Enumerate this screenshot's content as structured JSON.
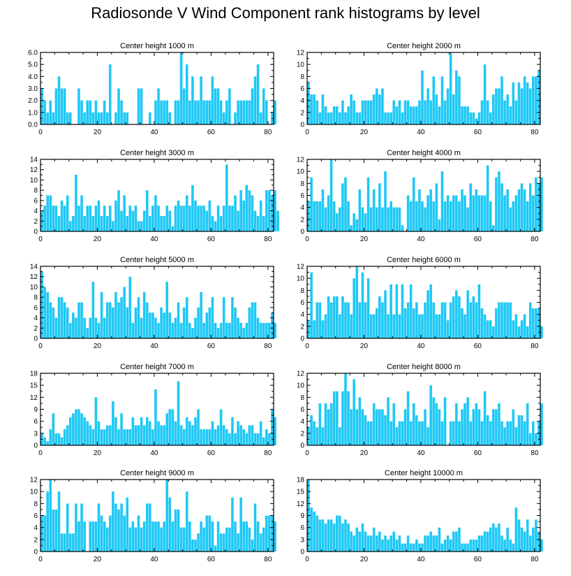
{
  "figure": {
    "title": "Radiosonde V Wind Component rank histograms by level",
    "bar_color": "#1EC8F5",
    "axis_color": "#000000"
  },
  "chart_data": [
    {
      "type": "bar",
      "title": "Center height 1000 m",
      "xlim": [
        0,
        82
      ],
      "ylim": [
        0,
        6
      ],
      "xticks": [
        0,
        20,
        40,
        60,
        80
      ],
      "yticks": [
        0.0,
        1.0,
        2.0,
        3.0,
        4.0,
        5.0,
        6.0
      ],
      "ytick_labels": [
        "0.0",
        "1.0",
        "2.0",
        "3.0",
        "4.0",
        "5.0",
        "6.0"
      ],
      "values": [
        3,
        2,
        1,
        2,
        1,
        3,
        4,
        3,
        3,
        1,
        1,
        0,
        0,
        3,
        2,
        1,
        2,
        2,
        1,
        2,
        1,
        1,
        2,
        1,
        5,
        0,
        1,
        3,
        2,
        1,
        1,
        0,
        0,
        0,
        3,
        3,
        0,
        0,
        1,
        0,
        2,
        3,
        2,
        2,
        2,
        1,
        0,
        2,
        2,
        6,
        3,
        5,
        2,
        4,
        2,
        2,
        4,
        2,
        2,
        2,
        4,
        3,
        3,
        2,
        1,
        2,
        3,
        0,
        1,
        2,
        2,
        2,
        2,
        2,
        3,
        4,
        5,
        1,
        3,
        2,
        0,
        1,
        2
      ]
    },
    {
      "type": "bar",
      "title": "Center height 2000 m",
      "xlim": [
        0,
        82
      ],
      "ylim": [
        0,
        12
      ],
      "xticks": [
        0,
        20,
        40,
        60,
        80
      ],
      "yticks": [
        0,
        2,
        4,
        6,
        8,
        10,
        12
      ],
      "ytick_labels": [
        "0",
        "2",
        "4",
        "6",
        "8",
        "10",
        "12"
      ],
      "values": [
        7,
        5,
        5,
        4,
        2,
        5,
        3,
        2,
        2,
        3,
        3,
        2,
        4,
        2,
        3,
        5,
        4,
        2,
        2,
        4,
        4,
        4,
        4,
        5,
        6,
        5,
        6,
        2,
        2,
        2,
        4,
        3,
        4,
        2,
        4,
        4,
        3,
        3,
        3,
        4,
        9,
        4,
        6,
        4,
        8,
        5,
        3,
        8,
        4,
        6,
        12,
        5,
        9,
        8,
        3,
        3,
        3,
        2,
        2,
        1,
        2,
        4,
        10,
        4,
        2,
        5,
        6,
        6,
        8,
        4,
        5,
        3,
        7,
        4,
        7,
        6,
        8,
        7,
        6,
        8,
        8,
        9
      ]
    },
    {
      "type": "bar",
      "title": "Center height 3000 m",
      "xlim": [
        0,
        82
      ],
      "ylim": [
        0,
        14
      ],
      "xticks": [
        0,
        20,
        40,
        60,
        80
      ],
      "yticks": [
        0,
        2,
        4,
        6,
        8,
        10,
        12,
        14
      ],
      "ytick_labels": [
        "0",
        "2",
        "4",
        "6",
        "8",
        "10",
        "12",
        "14"
      ],
      "values": [
        4,
        5,
        7,
        7,
        5,
        5,
        3,
        6,
        5,
        7,
        2,
        3,
        11,
        5,
        7,
        3,
        5,
        5,
        3,
        5,
        6,
        3,
        5,
        3,
        5,
        2,
        6,
        8,
        4,
        7,
        3,
        5,
        4,
        5,
        2,
        2,
        4,
        8,
        3,
        5,
        7,
        5,
        3,
        3,
        5,
        4,
        1,
        5,
        6,
        5,
        5,
        7,
        5,
        9,
        6,
        5,
        5,
        5,
        4,
        6,
        3,
        2,
        5,
        3,
        5,
        13,
        5,
        5,
        7,
        4,
        8,
        6,
        9,
        8,
        7,
        4,
        3,
        6,
        3,
        8,
        8,
        7,
        8,
        4
      ]
    },
    {
      "type": "bar",
      "title": "Center height 4000 m",
      "xlim": [
        0,
        82
      ],
      "ylim": [
        0,
        12
      ],
      "xticks": [
        0,
        20,
        40,
        60,
        80
      ],
      "yticks": [
        0,
        2,
        4,
        6,
        8,
        10,
        12
      ],
      "ytick_labels": [
        "0",
        "2",
        "4",
        "6",
        "8",
        "10",
        "12"
      ],
      "values": [
        5,
        9,
        5,
        5,
        5,
        7,
        4,
        6,
        12,
        5,
        3,
        4,
        8,
        9,
        5,
        1,
        3,
        2,
        7,
        4,
        3,
        9,
        4,
        7,
        4,
        8,
        4,
        10,
        4,
        5,
        4,
        4,
        4,
        1,
        0,
        6,
        5,
        9,
        5,
        7,
        5,
        4,
        6,
        7,
        5,
        8,
        2,
        10,
        5,
        6,
        5,
        6,
        6,
        5,
        7,
        6,
        4,
        8,
        6,
        7,
        6,
        6,
        6,
        11,
        5,
        1,
        9,
        10,
        8,
        6,
        7,
        4,
        5,
        6,
        7,
        8,
        7,
        5,
        8,
        6,
        9,
        8,
        9
      ]
    },
    {
      "type": "bar",
      "title": "Center height 5000 m",
      "xlim": [
        0,
        82
      ],
      "ylim": [
        0,
        14
      ],
      "xticks": [
        0,
        20,
        40,
        60,
        80
      ],
      "yticks": [
        0,
        2,
        4,
        6,
        8,
        10,
        12,
        14
      ],
      "ytick_labels": [
        "0",
        "2",
        "4",
        "6",
        "8",
        "10",
        "12",
        "14"
      ],
      "values": [
        13,
        10,
        9,
        7,
        6,
        4,
        8,
        8,
        7,
        6,
        3,
        5,
        4,
        7,
        7,
        4,
        2,
        4,
        11,
        4,
        3,
        9,
        4,
        7,
        7,
        6,
        9,
        7,
        8,
        10,
        6,
        12,
        3,
        6,
        8,
        4,
        9,
        7,
        5,
        5,
        4,
        3,
        6,
        5,
        11,
        5,
        3,
        4,
        7,
        3,
        6,
        8,
        3,
        2,
        4,
        6,
        9,
        3,
        5,
        6,
        8,
        3,
        2,
        3,
        8,
        3,
        3,
        8,
        6,
        4,
        3,
        2,
        3,
        6,
        7,
        7,
        4,
        3,
        3,
        3,
        3,
        5,
        3
      ]
    },
    {
      "type": "bar",
      "title": "Center height 6000 m",
      "xlim": [
        0,
        82
      ],
      "ylim": [
        0,
        12
      ],
      "xticks": [
        0,
        20,
        40,
        60,
        80
      ],
      "yticks": [
        0,
        2,
        4,
        6,
        8,
        10,
        12
      ],
      "ytick_labels": [
        "0",
        "2",
        "4",
        "6",
        "8",
        "10",
        "12"
      ],
      "values": [
        3,
        11,
        3,
        6,
        6,
        3,
        4,
        7,
        6,
        7,
        7,
        4,
        7,
        6,
        6,
        4,
        10,
        12,
        6,
        11,
        6,
        10,
        4,
        4,
        5,
        7,
        6,
        8,
        4,
        9,
        4,
        9,
        4,
        9,
        5,
        6,
        9,
        5,
        6,
        4,
        4,
        6,
        8,
        9,
        6,
        4,
        4,
        6,
        6,
        3,
        6,
        7,
        8,
        7,
        5,
        4,
        8,
        6,
        7,
        6,
        9,
        5,
        4,
        3,
        3,
        2,
        5,
        6,
        6,
        6,
        6,
        6,
        3,
        4,
        2,
        3,
        4,
        2,
        6,
        5,
        5,
        5,
        2
      ]
    },
    {
      "type": "bar",
      "title": "Center height 7000 m",
      "xlim": [
        0,
        82
      ],
      "ylim": [
        0,
        18
      ],
      "xticks": [
        0,
        20,
        40,
        60,
        80
      ],
      "yticks": [
        0,
        3,
        6,
        9,
        12,
        15,
        18
      ],
      "ytick_labels": [
        "0",
        "3",
        "6",
        "9",
        "12",
        "15",
        "18"
      ],
      "values": [
        3,
        2,
        1,
        4,
        8,
        3,
        3,
        2,
        4,
        5,
        7,
        8,
        9,
        9,
        8,
        7,
        6,
        5,
        4,
        12,
        6,
        4,
        4,
        5,
        5,
        11,
        7,
        4,
        8,
        4,
        4,
        4,
        7,
        5,
        5,
        7,
        5,
        7,
        6,
        4,
        14,
        6,
        5,
        5,
        8,
        9,
        9,
        6,
        16,
        5,
        4,
        7,
        6,
        5,
        7,
        9,
        4,
        4,
        4,
        4,
        6,
        4,
        5,
        9,
        5,
        4,
        3,
        7,
        3,
        6,
        5,
        4,
        3,
        5,
        5,
        3,
        3,
        6,
        2,
        4,
        3,
        9,
        7
      ]
    },
    {
      "type": "bar",
      "title": "Center height 8000 m",
      "xlim": [
        0,
        82
      ],
      "ylim": [
        0,
        12
      ],
      "xticks": [
        0,
        20,
        40,
        60,
        80
      ],
      "yticks": [
        0,
        2,
        4,
        6,
        8,
        10,
        12
      ],
      "ytick_labels": [
        "0",
        "2",
        "4",
        "6",
        "8",
        "10",
        "12"
      ],
      "values": [
        3,
        5,
        4,
        3,
        7,
        3,
        7,
        6,
        7,
        9,
        9,
        3,
        9,
        12,
        9,
        6,
        11,
        6,
        8,
        6,
        5,
        4,
        4,
        7,
        6,
        6,
        6,
        5,
        8,
        4,
        7,
        3,
        4,
        4,
        6,
        9,
        4,
        7,
        5,
        4,
        4,
        6,
        3,
        10,
        8,
        7,
        6,
        4,
        8,
        0,
        4,
        4,
        7,
        4,
        6,
        7,
        8,
        4,
        6,
        7,
        6,
        4,
        9,
        5,
        4,
        6,
        6,
        7,
        4,
        3,
        4,
        4,
        6,
        3,
        5,
        5,
        4,
        7,
        2,
        4,
        2,
        4,
        7
      ]
    },
    {
      "type": "bar",
      "title": "Center height 9000 m",
      "xlim": [
        0,
        82
      ],
      "ylim": [
        0,
        12
      ],
      "xticks": [
        0,
        20,
        40,
        60,
        80
      ],
      "yticks": [
        0,
        2,
        4,
        6,
        8,
        10,
        12
      ],
      "ytick_labels": [
        "0",
        "2",
        "4",
        "6",
        "8",
        "10",
        "12"
      ],
      "values": [
        6,
        6,
        10,
        12,
        7,
        7,
        10,
        3,
        3,
        8,
        3,
        3,
        8,
        5,
        8,
        5,
        0,
        5,
        5,
        5,
        8,
        6,
        5,
        4,
        6,
        10,
        8,
        7,
        8,
        6,
        9,
        4,
        5,
        4,
        6,
        4,
        5,
        8,
        8,
        5,
        5,
        5,
        4,
        5,
        12,
        9,
        5,
        7,
        7,
        4,
        4,
        10,
        5,
        2,
        2,
        3,
        5,
        4,
        6,
        6,
        5,
        1,
        5,
        3,
        3,
        4,
        4,
        9,
        5,
        3,
        9,
        5,
        5,
        4,
        2,
        8,
        5,
        3,
        4,
        6,
        6,
        6,
        5
      ]
    },
    {
      "type": "bar",
      "title": "Center height 10000 m",
      "xlim": [
        0,
        82
      ],
      "ylim": [
        0,
        18
      ],
      "xticks": [
        0,
        20,
        40,
        60,
        80
      ],
      "yticks": [
        0,
        3,
        6,
        9,
        12,
        15,
        18
      ],
      "ytick_labels": [
        "0",
        "3",
        "6",
        "9",
        "12",
        "15",
        "18"
      ],
      "values": [
        18,
        11,
        10,
        9,
        8,
        8,
        7,
        8,
        8,
        7,
        9,
        9,
        7,
        8,
        7,
        5,
        4,
        6,
        5,
        7,
        5,
        4,
        4,
        6,
        4,
        5,
        3,
        4,
        3,
        4,
        5,
        3,
        4,
        2,
        2,
        4,
        2,
        2,
        3,
        2,
        2,
        4,
        4,
        5,
        4,
        4,
        6,
        2,
        3,
        4,
        3,
        5,
        5,
        6,
        2,
        2,
        2,
        3,
        3,
        3,
        4,
        4,
        5,
        5,
        6,
        7,
        6,
        7,
        4,
        3,
        6,
        3,
        2,
        11,
        8,
        6,
        5,
        8,
        4,
        6,
        8,
        5,
        3
      ]
    }
  ]
}
